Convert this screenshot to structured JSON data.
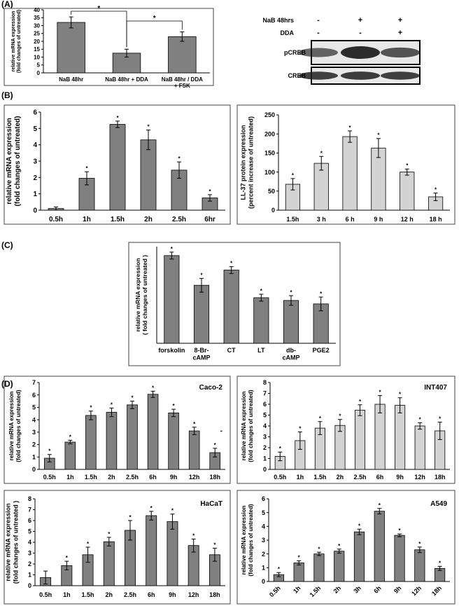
{
  "panel_labels": [
    "(A)",
    "(B)",
    "(C)",
    "(D)"
  ],
  "blot": {
    "conditions": [
      {
        "name": "NaB 48hrs",
        "marks": [
          "-",
          "+",
          "+"
        ]
      },
      {
        "name": "DDA",
        "marks": [
          "-",
          "-",
          "+"
        ]
      }
    ],
    "bands": [
      "pCREB",
      "CREB"
    ]
  },
  "chart_data": [
    {
      "type": "bar",
      "y_label": "relative mRNA expression\n(fold changes of untreated)",
      "color": "#808080",
      "categories": [
        "NaB 48hr",
        "NaB 48hr + DDA",
        "NaB 48hr / DDA\n+ FSK"
      ],
      "values": [
        32,
        12.5,
        23
      ],
      "errors": [
        3.5,
        2.5,
        3
      ],
      "bracket_labels": [
        "*",
        "*"
      ],
      "ylim": [
        0,
        40
      ],
      "yticks": [
        0,
        5,
        10,
        15,
        20,
        25,
        30,
        35,
        40
      ]
    },
    {
      "type": "bar",
      "y_label": "relative mRNA expression\n(fold changes of untreated)",
      "color": "#808080",
      "categories": [
        "0.5h",
        "1h",
        "1.5h",
        "2h",
        "2.5h",
        "6hr"
      ],
      "values": [
        0.1,
        1.95,
        5.25,
        4.3,
        2.45,
        0.75
      ],
      "errors": [
        0.1,
        0.4,
        0.2,
        0.6,
        0.5,
        0.2
      ],
      "significance": [
        null,
        "*",
        "*",
        "*",
        "*",
        "*"
      ],
      "ylim": [
        0,
        6
      ],
      "yticks": [
        0,
        1,
        2,
        3,
        4,
        5,
        6
      ]
    },
    {
      "type": "bar",
      "y_label": "LL-37 protein expression\n(percent increase of untreated)",
      "color": "#d3d3d3",
      "categories": [
        "1.5h",
        "3 h",
        "6 h",
        "9 h",
        "12 h",
        "18 h"
      ],
      "values": [
        68,
        123,
        193,
        163,
        100,
        35
      ],
      "errors": [
        15,
        18,
        15,
        25,
        8,
        10
      ],
      "significance": [
        "*",
        "*",
        "*",
        "*",
        "*",
        "*"
      ],
      "ylim": [
        0,
        250
      ],
      "yticks": [
        0,
        50,
        100,
        150,
        200,
        250
      ]
    },
    {
      "type": "bar",
      "y_label": "relative mRNA expression\n( fold changes of untreated )",
      "color": "#808080",
      "categories": [
        "forskolin",
        "8-Br-\ncAMP",
        "CT",
        "LT",
        "db-\ncAMP",
        "PGE2"
      ],
      "values": [
        6.35,
        4.2,
        5.3,
        3.3,
        3.1,
        2.85
      ],
      "errors": [
        0.25,
        0.5,
        0.25,
        0.25,
        0.35,
        0.5
      ],
      "significance": [
        "*",
        "*",
        "*",
        "*",
        "*",
        "*"
      ],
      "ylim": [
        0,
        7
      ]
    },
    {
      "type": "bar",
      "title": "Caco-2",
      "note": "-",
      "y_label": "relative mRNA expression\n(fold changes of untreated)",
      "color": "#808080",
      "categories": [
        "0.5h",
        "1h",
        "1.5h",
        "2h",
        "2.5h",
        "6h",
        "9h",
        "12h",
        "18h"
      ],
      "values": [
        0.9,
        2.2,
        4.35,
        4.6,
        5.2,
        6.05,
        4.55,
        3.1,
        1.35
      ],
      "errors": [
        0.3,
        0.15,
        0.35,
        0.35,
        0.3,
        0.25,
        0.3,
        0.3,
        0.35
      ],
      "significance": [
        "*",
        "*",
        "*",
        "*",
        "*",
        "*",
        "*",
        "*",
        "*"
      ],
      "ylim": [
        0,
        7
      ],
      "yticks": [
        0,
        1,
        2,
        3,
        4,
        5,
        6,
        7
      ]
    },
    {
      "type": "bar",
      "title": "INT407",
      "y_label": "relative mRNA expression\n(fold changes of untreated)",
      "color": "#d3d3d3",
      "categories": [
        "0.5h",
        "1h",
        "1.5h",
        "2h",
        "2.5h",
        "6h",
        "9h",
        "12h",
        "18h"
      ],
      "values": [
        1.2,
        2.65,
        3.8,
        4.05,
        5.45,
        6.0,
        5.9,
        4.0,
        3.55
      ],
      "errors": [
        0.4,
        0.8,
        0.6,
        0.55,
        0.5,
        0.8,
        0.7,
        0.3,
        0.8
      ],
      "significance": [
        "*",
        "*",
        "*",
        "*",
        "*",
        "*",
        "*",
        "*",
        "*"
      ],
      "ylim": [
        0,
        8
      ],
      "yticks": [
        0,
        1,
        2,
        3,
        4,
        5,
        6,
        7,
        8
      ]
    },
    {
      "type": "bar",
      "title": "HaCaT",
      "y_label": "relative mRNA expression\n(fold changes of untreated )",
      "color": "#808080",
      "categories": [
        "0.5h",
        "1h",
        "1.5h",
        "2h",
        "2.5h",
        "6h",
        "9h",
        "12h",
        "18h"
      ],
      "values": [
        0.75,
        1.85,
        2.85,
        4.05,
        5.1,
        6.45,
        5.9,
        3.7,
        2.85
      ],
      "errors": [
        0.6,
        0.4,
        0.7,
        0.4,
        0.9,
        0.4,
        0.7,
        0.6,
        0.6
      ],
      "significance": [
        null,
        "*",
        "*",
        "*",
        "*",
        "*",
        "*",
        "*",
        "*"
      ],
      "ylim": [
        0,
        8
      ],
      "yticks": [
        0,
        1,
        2,
        3,
        4,
        5,
        6,
        7,
        8
      ]
    },
    {
      "type": "bar",
      "title": "A549",
      "y_label": "relative mRNA expression\n(fold changes of untreated)",
      "color": "#808080",
      "categories": [
        "0.5h",
        "1h",
        "1.5h",
        "2h",
        "3h",
        "6h",
        "9h",
        "12h",
        "18h"
      ],
      "values": [
        0.5,
        1.35,
        2.0,
        2.2,
        3.6,
        5.1,
        3.35,
        2.3,
        0.95
      ],
      "errors": [
        0.15,
        0.15,
        0.12,
        0.15,
        0.2,
        0.2,
        0.1,
        0.2,
        0.15
      ],
      "significance": [
        "*",
        "*",
        "*",
        "*",
        "*",
        "*",
        "*",
        "*",
        "*"
      ],
      "ylim": [
        0,
        6
      ],
      "yticks": [
        0,
        1,
        2,
        3,
        4,
        5,
        6
      ]
    }
  ]
}
